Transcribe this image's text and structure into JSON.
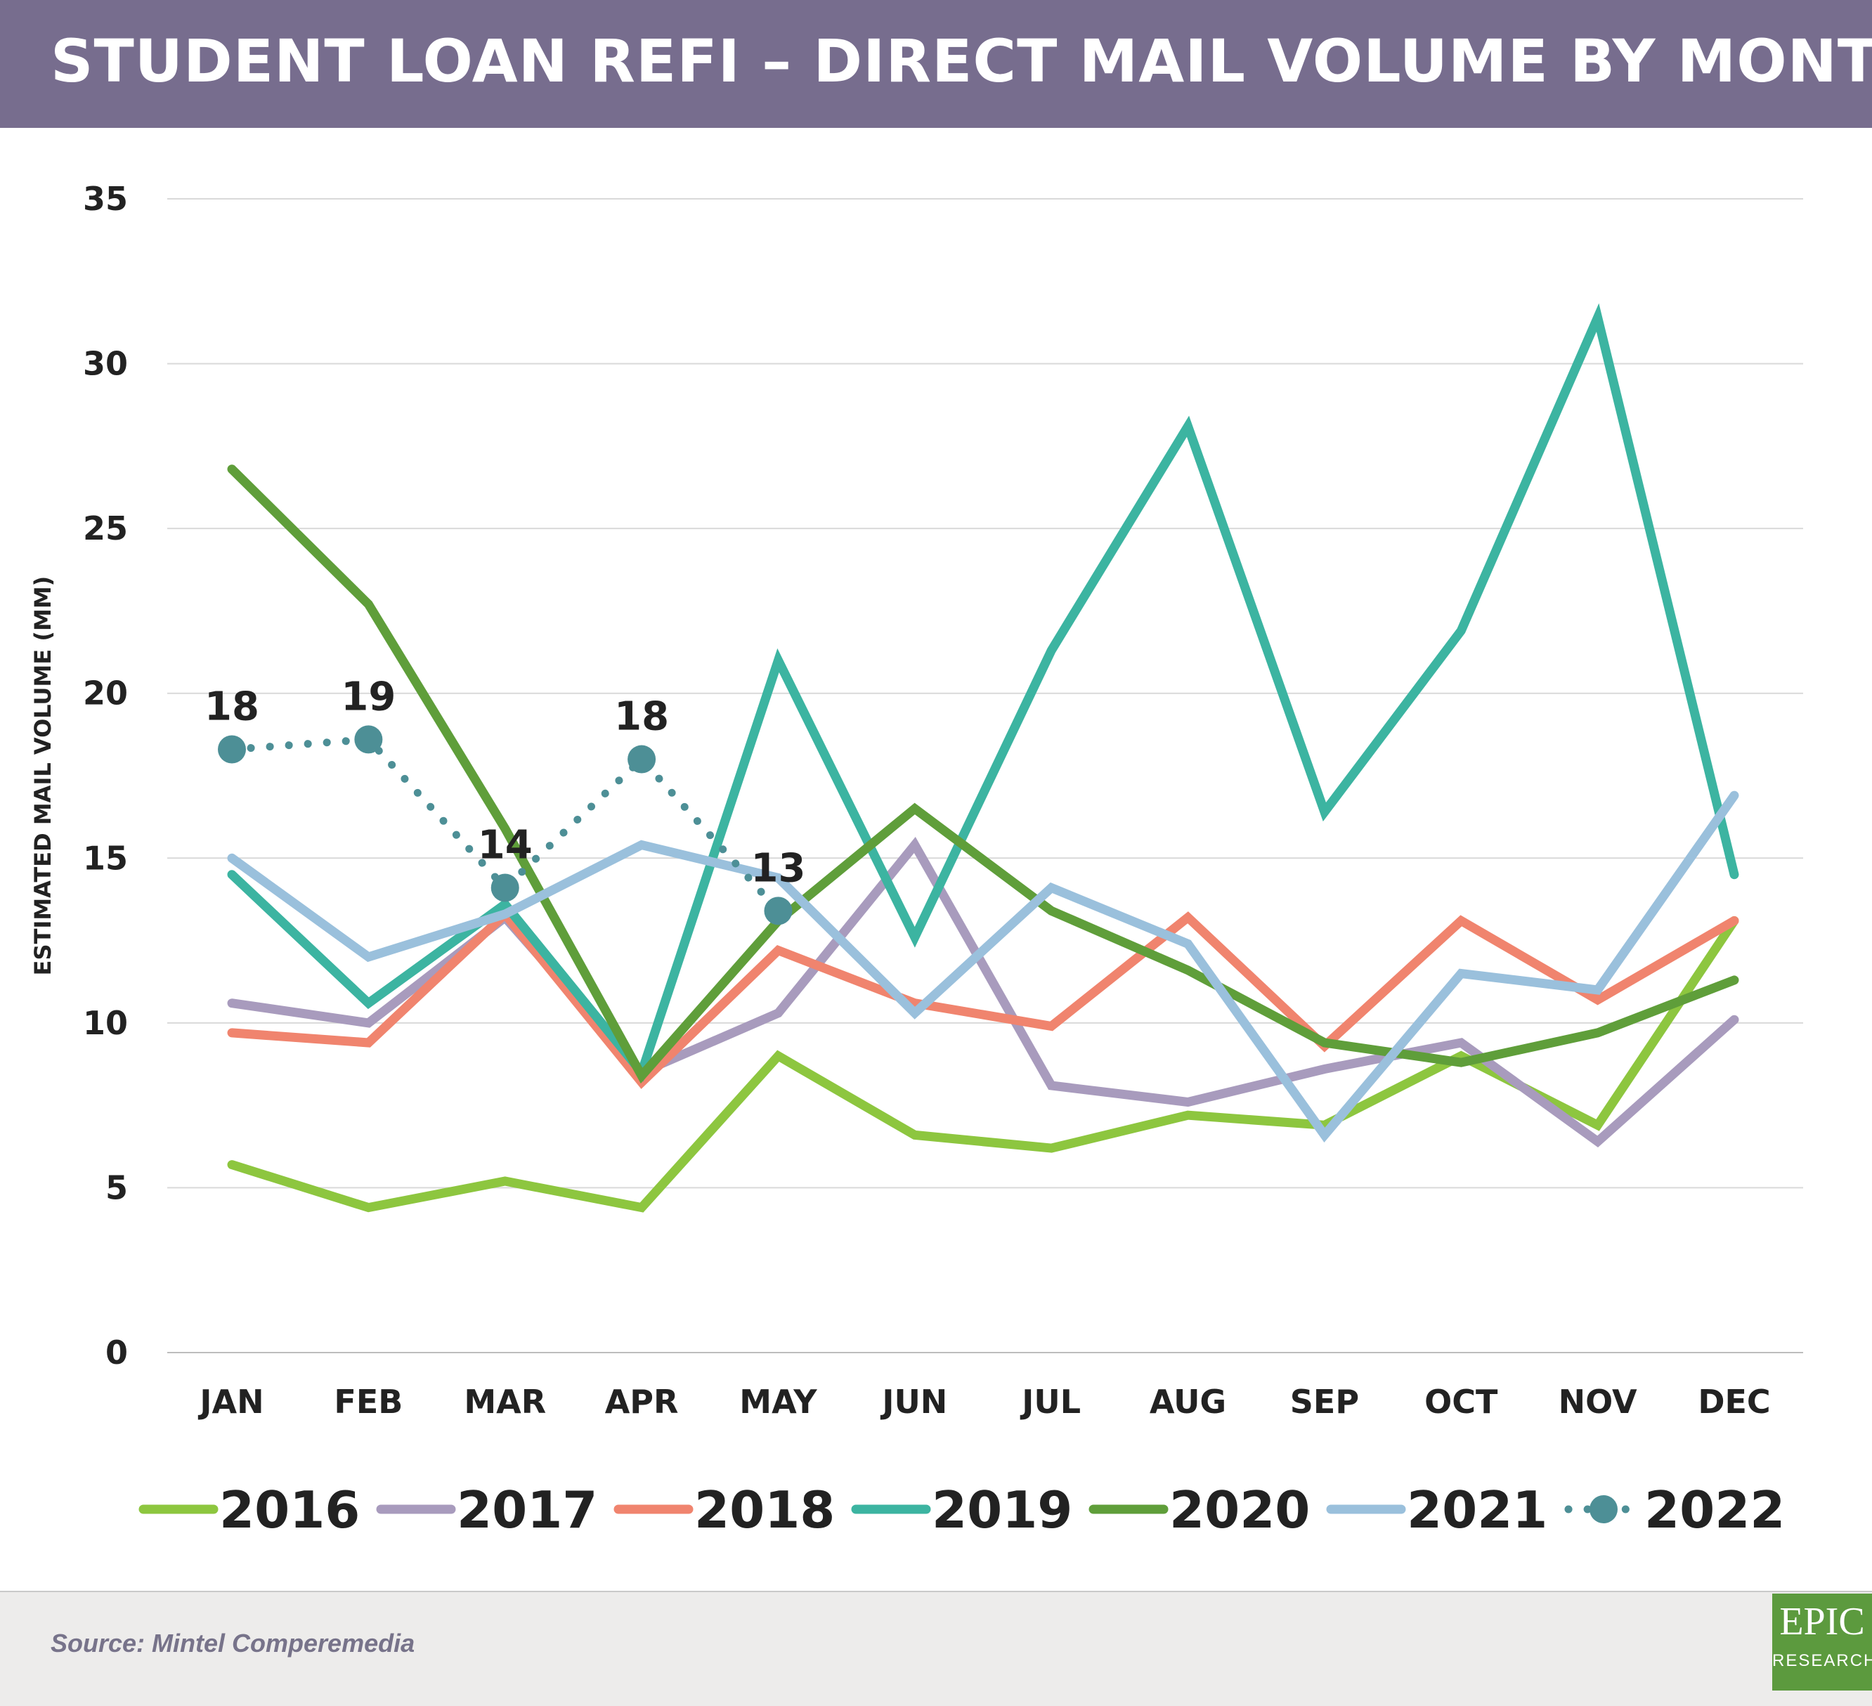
{
  "header": {
    "title": "STUDENT LOAN REFI – DIRECT MAIL VOLUME BY MONTH"
  },
  "footer": {
    "source": "Source: Mintel Comperemedia"
  },
  "logo": {
    "main": "EPIC",
    "sub": "RESEARCH"
  },
  "colors": {
    "title_bar": "#776d8e",
    "footer_bg": "#edeceb",
    "logo_bg": "#5c9a3e"
  },
  "chart_data": {
    "type": "line",
    "title": "STUDENT LOAN REFI – DIRECT MAIL VOLUME BY MONTH",
    "xlabel": "",
    "ylabel": "ESTIMATED MAIL VOLUME (MM)",
    "ylim": [
      0,
      35
    ],
    "yticks": [
      0,
      5,
      10,
      15,
      20,
      25,
      30,
      35
    ],
    "grid": true,
    "legend": "bottom",
    "categories": [
      "JAN",
      "FEB",
      "MAR",
      "APR",
      "MAY",
      "JUN",
      "JUL",
      "AUG",
      "SEP",
      "OCT",
      "NOV",
      "DEC"
    ],
    "series": [
      {
        "name": "2016",
        "color": "#8dc63f",
        "style": "solid",
        "values": [
          5.7,
          4.4,
          5.2,
          4.4,
          9.0,
          6.6,
          6.2,
          7.2,
          6.9,
          9.0,
          6.9,
          13.1
        ]
      },
      {
        "name": "2017",
        "color": "#a89bbd",
        "style": "solid",
        "values": [
          10.6,
          10.0,
          13.2,
          8.5,
          10.3,
          15.4,
          8.1,
          7.6,
          8.6,
          9.4,
          6.4,
          10.1
        ]
      },
      {
        "name": "2018",
        "color": "#f0846e",
        "style": "solid",
        "values": [
          9.7,
          9.4,
          13.3,
          8.2,
          12.2,
          10.6,
          9.9,
          13.2,
          9.3,
          13.1,
          10.7,
          13.1
        ]
      },
      {
        "name": "2019",
        "color": "#3cb4a1",
        "style": "solid",
        "values": [
          14.5,
          10.6,
          13.6,
          8.5,
          21.0,
          12.6,
          21.3,
          28.1,
          16.4,
          21.9,
          31.4,
          14.5
        ]
      },
      {
        "name": "2020",
        "color": "#5f9e3a",
        "style": "solid",
        "values": [
          26.8,
          22.7,
          15.9,
          8.4,
          13.1,
          16.5,
          13.4,
          11.6,
          9.4,
          8.8,
          9.7,
          11.3
        ]
      },
      {
        "name": "2021",
        "color": "#9ac0dc",
        "style": "solid",
        "values": [
          15.0,
          12.0,
          13.3,
          15.4,
          14.4,
          10.3,
          14.1,
          12.4,
          6.6,
          11.5,
          11.0,
          16.9
        ]
      },
      {
        "name": "2022",
        "color": "#4d8f96",
        "style": "dotted",
        "values": [
          18.3,
          18.6,
          14.1,
          18.0,
          13.4,
          null,
          null,
          null,
          null,
          null,
          null,
          null
        ],
        "labels": [
          "18",
          "19",
          "14",
          "18",
          "13"
        ]
      }
    ]
  }
}
